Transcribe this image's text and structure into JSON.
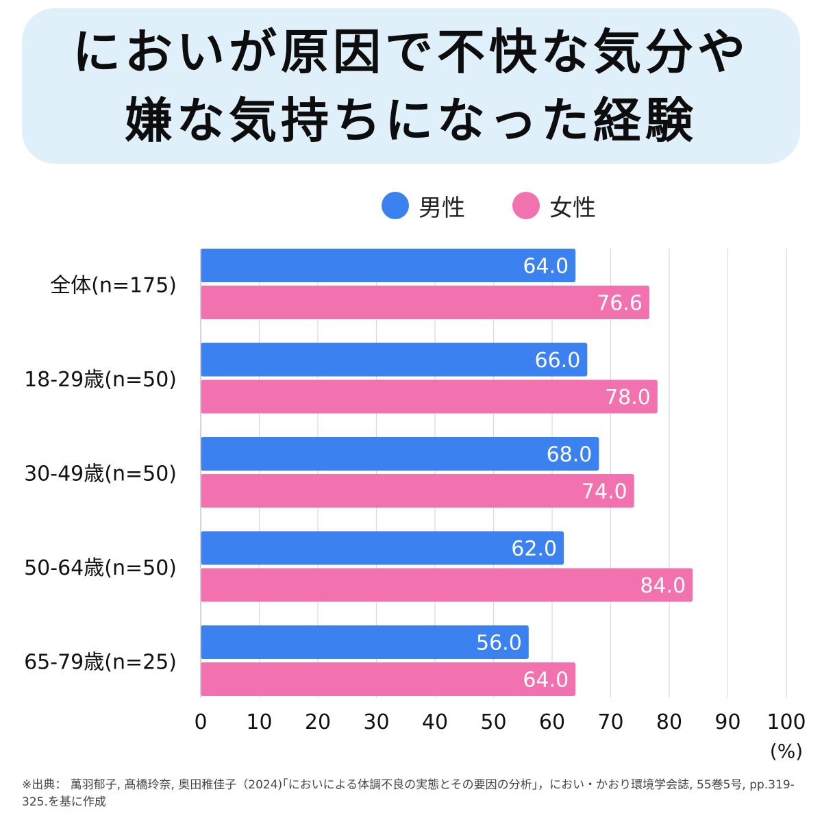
{
  "header": {
    "title_line1": "においが原因で不快な気分や",
    "title_line2": "嫌な気持ちになった経験"
  },
  "colors": {
    "male": "#3b82f0",
    "female": "#f272b0",
    "title_bg": "#dff0fb",
    "grid": "#d9d9d9"
  },
  "chart_data": {
    "type": "bar",
    "orientation": "horizontal",
    "categories": [
      "全体(n=175)",
      "18-29歳(n=50)",
      "30-49歳(n=50)",
      "50-64歳(n=50)",
      "65-79歳(n=25)"
    ],
    "series": [
      {
        "name": "男性",
        "values": [
          64.0,
          66.0,
          68.0,
          62.0,
          56.0
        ],
        "labels": [
          "64.0",
          "66.0",
          "68.0",
          "62.0",
          "56.0"
        ]
      },
      {
        "name": "女性",
        "values": [
          76.6,
          78.0,
          74.0,
          84.0,
          64.0
        ],
        "labels": [
          "76.6",
          "78.0",
          "74.0",
          "84.0",
          "64.0"
        ]
      }
    ],
    "xlim": [
      0,
      100
    ],
    "xticks": [
      "0",
      "10",
      "20",
      "30",
      "40",
      "50",
      "60",
      "70",
      "80",
      "90",
      "100"
    ],
    "x_unit": "(%)",
    "grid": true,
    "legend": "top-center"
  },
  "source": {
    "text": "※出典： 萬羽郁子, 髙橋玲奈, 奥田稚佳子（2024)｢においによる体調不良の実態とその要因の分析｣，におい・かおり環境学会誌, 55巻5号, pp.319-325.を基に作成"
  }
}
